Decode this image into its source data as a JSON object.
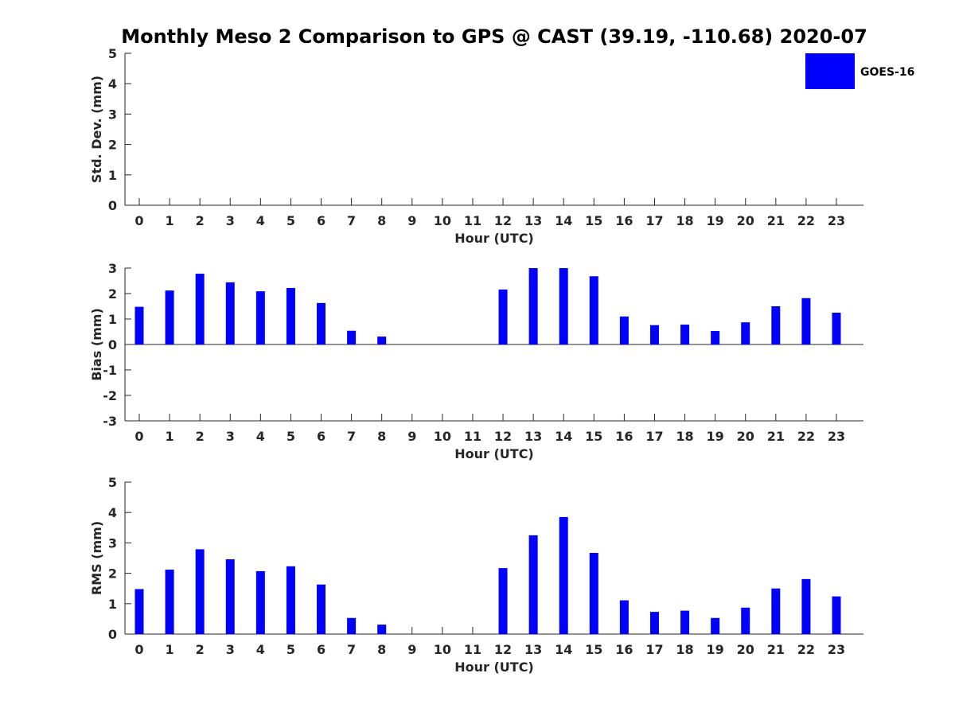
{
  "title": "Monthly Meso 2 Comparison to GPS @ CAST (39.19, -110.68) 2020-07",
  "legend": {
    "label": "GOES-16",
    "color": "#0000ff",
    "placement": "top-right"
  },
  "chart_data": [
    {
      "type": "bar",
      "xlabel": "Hour (UTC)",
      "ylabel": "Std. Dev. (mm)",
      "ylim": [
        0,
        5
      ],
      "yticks": [
        0,
        1,
        2,
        3,
        4,
        5
      ],
      "categories": [
        0,
        1,
        2,
        3,
        4,
        5,
        6,
        7,
        8,
        9,
        10,
        11,
        12,
        13,
        14,
        15,
        16,
        17,
        18,
        19,
        20,
        21,
        22,
        23
      ],
      "series": [
        {
          "name": "GOES-16",
          "color": "#0000ff",
          "values": [
            null,
            null,
            null,
            null,
            null,
            null,
            null,
            null,
            null,
            null,
            null,
            null,
            null,
            null,
            null,
            null,
            null,
            null,
            null,
            null,
            null,
            null,
            null,
            null
          ]
        }
      ]
    },
    {
      "type": "bar",
      "xlabel": "Hour (UTC)",
      "ylabel": "Bias (mm)",
      "ylim": [
        -3,
        3
      ],
      "yticks": [
        -3,
        -2,
        -1,
        0,
        1,
        2,
        3
      ],
      "zero_line": true,
      "categories": [
        0,
        1,
        2,
        3,
        4,
        5,
        6,
        7,
        8,
        9,
        10,
        11,
        12,
        13,
        14,
        15,
        16,
        17,
        18,
        19,
        20,
        21,
        22,
        23
      ],
      "series": [
        {
          "name": "GOES-16",
          "color": "#0000ff",
          "values": [
            1.48,
            2.12,
            2.78,
            2.44,
            2.09,
            2.22,
            1.63,
            0.54,
            0.31,
            null,
            null,
            null,
            2.16,
            3.0,
            3.0,
            2.68,
            1.1,
            0.76,
            0.78,
            0.53,
            0.87,
            1.5,
            1.82,
            1.25
          ]
        }
      ]
    },
    {
      "type": "bar",
      "xlabel": "Hour (UTC)",
      "ylabel": "RMS (mm)",
      "ylim": [
        0,
        5
      ],
      "yticks": [
        0,
        1,
        2,
        3,
        4,
        5
      ],
      "categories": [
        0,
        1,
        2,
        3,
        4,
        5,
        6,
        7,
        8,
        9,
        10,
        11,
        12,
        13,
        14,
        15,
        16,
        17,
        18,
        19,
        20,
        21,
        22,
        23
      ],
      "series": [
        {
          "name": "GOES-16",
          "color": "#0000ff",
          "values": [
            1.48,
            2.12,
            2.79,
            2.46,
            2.07,
            2.23,
            1.63,
            0.53,
            0.31,
            null,
            null,
            null,
            2.17,
            3.25,
            3.85,
            2.67,
            1.11,
            0.73,
            0.77,
            0.53,
            0.87,
            1.5,
            1.81,
            1.24
          ]
        }
      ]
    }
  ]
}
